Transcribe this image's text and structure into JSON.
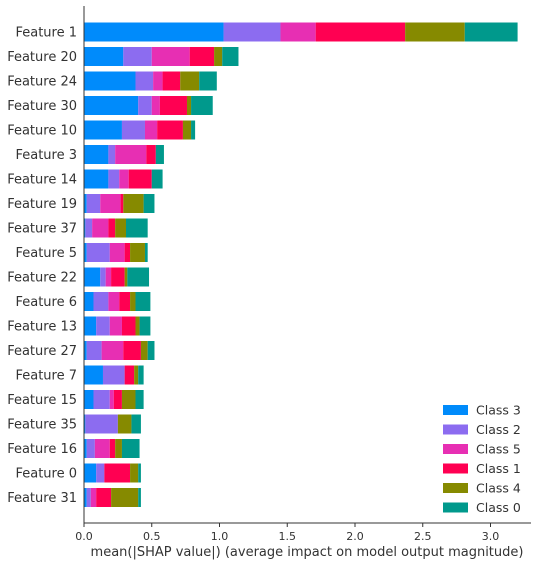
{
  "chart_data": {
    "type": "bar",
    "orientation": "horizontal",
    "stacked": true,
    "xlabel": "mean(|SHAP value|) (average impact on model output magnitude)",
    "ylabel": "",
    "xlim": [
      0,
      3.3
    ],
    "xticks": [
      "0.0",
      "0.5",
      "1.0",
      "1.5",
      "2.0",
      "2.5",
      "3.0"
    ],
    "legend_position": "bottom-right",
    "grid": false,
    "categories": [
      "Feature 1",
      "Feature 20",
      "Feature 24",
      "Feature 30",
      "Feature 10",
      "Feature 3",
      "Feature 14",
      "Feature 19",
      "Feature 37",
      "Feature 5",
      "Feature 22",
      "Feature 6",
      "Feature 13",
      "Feature 27",
      "Feature 7",
      "Feature 15",
      "Feature 35",
      "Feature 16",
      "Feature 0",
      "Feature 31"
    ],
    "series": [
      {
        "name": "Class 3",
        "color": "#008bfb",
        "values": [
          1.03,
          0.29,
          0.38,
          0.4,
          0.28,
          0.18,
          0.18,
          0.02,
          0.01,
          0.02,
          0.12,
          0.07,
          0.09,
          0.02,
          0.14,
          0.07,
          0.01,
          0.02,
          0.09,
          0.02
        ]
      },
      {
        "name": "Class 2",
        "color": "#8c6cf0",
        "values": [
          0.42,
          0.21,
          0.13,
          0.1,
          0.17,
          0.05,
          0.08,
          0.1,
          0.05,
          0.17,
          0.04,
          0.11,
          0.1,
          0.11,
          0.16,
          0.12,
          0.24,
          0.06,
          0.06,
          0.03
        ]
      },
      {
        "name": "Class 5",
        "color": "#e72fb3",
        "values": [
          0.26,
          0.28,
          0.07,
          0.06,
          0.09,
          0.23,
          0.07,
          0.15,
          0.12,
          0.11,
          0.04,
          0.08,
          0.09,
          0.16,
          0.0,
          0.03,
          0.0,
          0.11,
          0.0,
          0.04
        ]
      },
      {
        "name": "Class 1",
        "color": "#ff0052",
        "values": [
          0.66,
          0.18,
          0.13,
          0.2,
          0.19,
          0.07,
          0.17,
          0.02,
          0.05,
          0.04,
          0.1,
          0.08,
          0.1,
          0.13,
          0.07,
          0.06,
          0.0,
          0.04,
          0.19,
          0.11
        ]
      },
      {
        "name": "Class 4",
        "color": "#868a00",
        "values": [
          0.44,
          0.06,
          0.14,
          0.03,
          0.06,
          0.0,
          0.0,
          0.15,
          0.08,
          0.11,
          0.02,
          0.04,
          0.03,
          0.05,
          0.03,
          0.1,
          0.1,
          0.05,
          0.06,
          0.2
        ]
      },
      {
        "name": "Class 0",
        "color": "#00998c",
        "values": [
          0.39,
          0.12,
          0.13,
          0.16,
          0.03,
          0.06,
          0.08,
          0.08,
          0.16,
          0.02,
          0.16,
          0.11,
          0.08,
          0.05,
          0.04,
          0.06,
          0.07,
          0.13,
          0.02,
          0.02
        ]
      }
    ],
    "legend_order": [
      "Class 3",
      "Class 2",
      "Class 5",
      "Class 1",
      "Class 4",
      "Class 0"
    ]
  }
}
